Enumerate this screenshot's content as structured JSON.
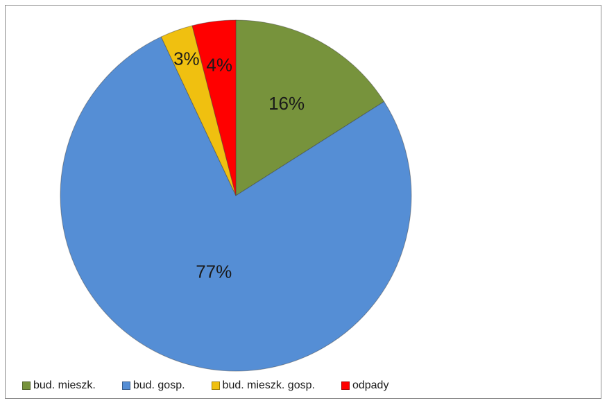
{
  "chart_data": {
    "type": "pie",
    "title": "",
    "slices": [
      {
        "label": "bud. mieszk.",
        "value": 16,
        "display": "16%",
        "color": "#77933c"
      },
      {
        "label": "bud. gosp.",
        "value": 77,
        "display": "77%",
        "color": "#558ed5"
      },
      {
        "label": "bud. mieszk. gosp.",
        "value": 3,
        "display": "3%",
        "color": "#f0c010"
      },
      {
        "label": "odpady",
        "value": 4,
        "display": "4%",
        "color": "#ff0000"
      }
    ],
    "legend_position": "bottom"
  }
}
